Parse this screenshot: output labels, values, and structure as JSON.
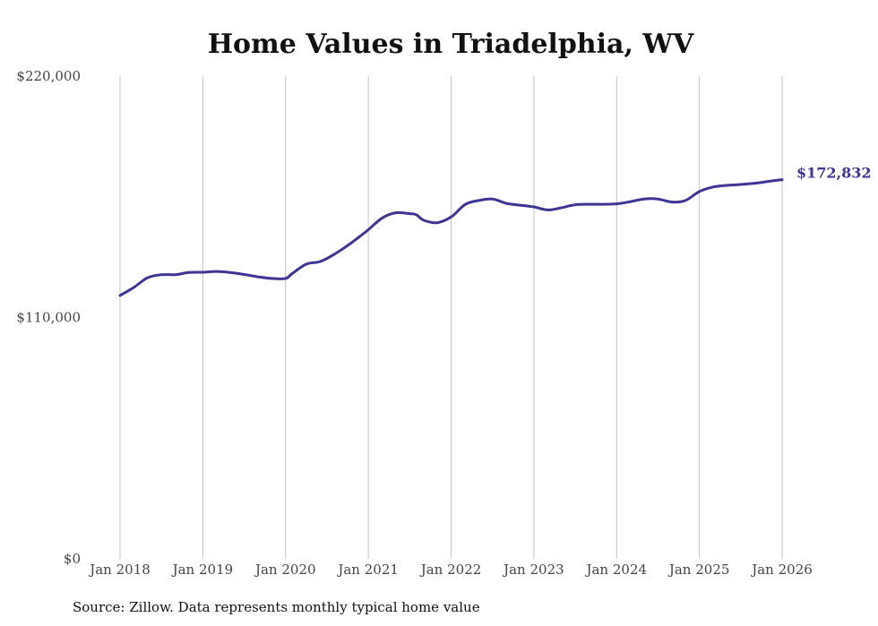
{
  "chart_data": {
    "type": "line",
    "title": "Home Values in Triadelphia, WV",
    "source_note": "Source: Zillow. Data represents monthly typical home value",
    "xlabel": "",
    "ylabel": "",
    "ylim": [
      0,
      220000
    ],
    "y_tick_values": [
      0,
      110000,
      220000
    ],
    "y_tick_labels": [
      "$0",
      "$110,000",
      "$220,000"
    ],
    "x_tick_values": [
      2018,
      2019,
      2020,
      2021,
      2022,
      2023,
      2024,
      2025,
      2026
    ],
    "x_tick_labels": [
      "Jan 2018",
      "Jan 2019",
      "Jan 2020",
      "Jan 2021",
      "Jan 2022",
      "Jan 2023",
      "Jan 2024",
      "Jan 2025",
      "Jan 2026"
    ],
    "xlim": [
      2018,
      2026
    ],
    "grid": "vertical",
    "line_color": "#3d3494",
    "end_label": "$172,832",
    "series": [
      {
        "name": "Typical home value",
        "x": [
          2018.0,
          2018.17,
          2018.33,
          2018.5,
          2018.67,
          2018.83,
          2019.0,
          2019.17,
          2019.33,
          2019.5,
          2019.67,
          2019.83,
          2020.0,
          2020.08,
          2020.25,
          2020.42,
          2020.58,
          2020.75,
          2020.92,
          2021.0,
          2021.17,
          2021.33,
          2021.5,
          2021.58,
          2021.67,
          2021.83,
          2022.0,
          2022.17,
          2022.33,
          2022.5,
          2022.67,
          2022.83,
          2023.0,
          2023.17,
          2023.33,
          2023.5,
          2023.67,
          2023.83,
          2024.0,
          2024.17,
          2024.33,
          2024.5,
          2024.67,
          2024.83,
          2025.0,
          2025.17,
          2025.33,
          2025.5,
          2025.67,
          2025.83,
          2026.0
        ],
        "values": [
          120000,
          123800,
          128100,
          129500,
          129500,
          130500,
          130600,
          131000,
          130500,
          129600,
          128500,
          127800,
          127800,
          130000,
          134300,
          135500,
          138600,
          142800,
          147600,
          150000,
          155400,
          157700,
          157300,
          156800,
          154300,
          153200,
          155800,
          161500,
          163300,
          164000,
          162000,
          161200,
          160400,
          159000,
          160000,
          161400,
          161600,
          161600,
          161800,
          162800,
          164000,
          164000,
          162600,
          163300,
          167400,
          169500,
          170200,
          170600,
          171200,
          172000,
          172832
        ]
      }
    ]
  }
}
